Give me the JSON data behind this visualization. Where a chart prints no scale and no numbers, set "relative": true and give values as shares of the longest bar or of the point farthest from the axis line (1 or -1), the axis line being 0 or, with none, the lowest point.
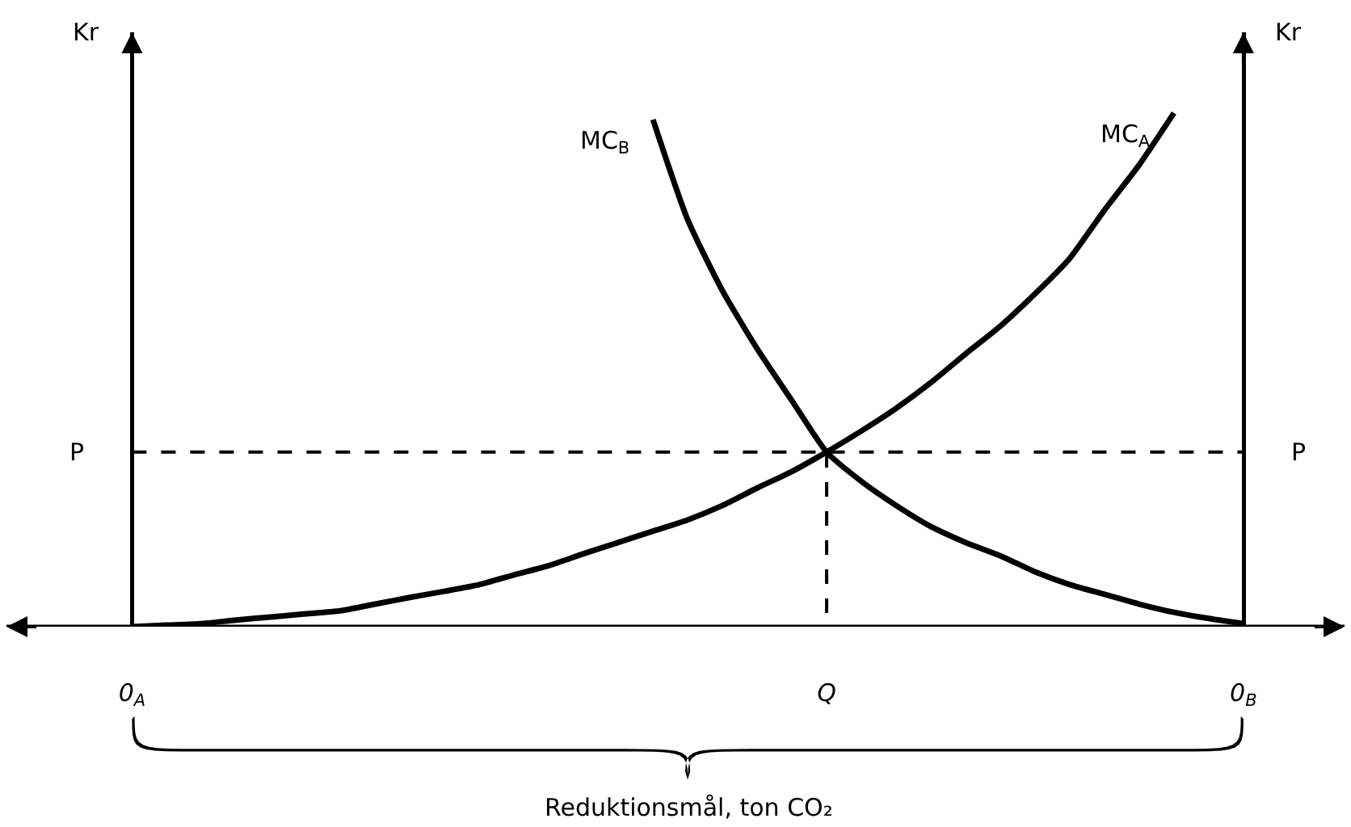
{
  "chart_data": {
    "type": "line",
    "relative": true,
    "ylabel": "Kr",
    "y2label": "Kr",
    "xlabel": "Reduktionsmål, ton CO₂",
    "categories": [
      "0$_{A}$",
      null,
      null,
      null,
      null,
      null,
      null,
      null,
      null,
      null,
      null,
      null,
      null,
      null,
      null,
      null,
      null,
      null,
      null,
      null,
      "Q",
      null,
      null,
      null,
      null,
      null,
      null,
      null,
      null,
      null,
      null,
      null,
      "0$_{B}$"
    ],
    "series": [
      {
        "name": "MC$_{B}$",
        "color": "#000000",
        "values": [
          null,
          null,
          null,
          null,
          null,
          null,
          null,
          null,
          null,
          null,
          null,
          null,
          null,
          null,
          null,
          0.987,
          0.792,
          0.654,
          0.541,
          0.44,
          0.34,
          0.283,
          0.236,
          0.195,
          0.164,
          0.138,
          0.107,
          0.082,
          0.063,
          0.044,
          0.028,
          0.016,
          0.006
        ]
      },
      {
        "name": "MC$_{A}$",
        "color": "#000000",
        "values": [
          0,
          0.003,
          0.006,
          0.013,
          0.019,
          0.025,
          0.031,
          0.044,
          0.057,
          0.069,
          0.082,
          0.101,
          0.119,
          0.142,
          0.164,
          0.186,
          0.208,
          0.236,
          0.27,
          0.302,
          0.34,
          0.381,
          0.425,
          0.475,
          0.531,
          0.585,
          0.648,
          0.717,
          0.811,
          0.899,
          1.0,
          null,
          null
        ]
      }
    ],
    "ref_lines": [
      {
        "axis": "y",
        "value": 0.34,
        "label": "P",
        "line_style": "dashed",
        "color": "#000000"
      },
      {
        "axis": "x",
        "value": "Q",
        "line_style": "dashed",
        "color": "#000000"
      }
    ],
    "grid": false,
    "legend": false,
    "marker": "none"
  }
}
